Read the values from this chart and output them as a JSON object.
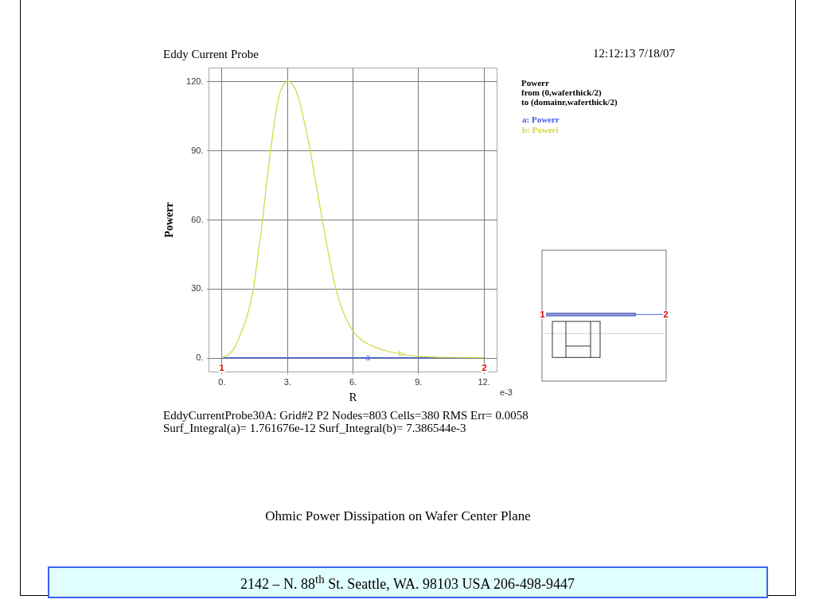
{
  "chart_data": {
    "type": "line",
    "title": "Eddy Current Probe",
    "xlabel": "R",
    "ylabel": "Powerr",
    "xlim": [
      -0.6,
      12.6
    ],
    "ylim": [
      -6,
      126
    ],
    "xticks": [
      {
        "value": 0,
        "label": "0."
      },
      {
        "value": 3,
        "label": "3."
      },
      {
        "value": 6,
        "label": "6."
      },
      {
        "value": 9,
        "label": "9."
      },
      {
        "value": 12,
        "label": "12."
      }
    ],
    "yticks": [
      {
        "value": 0,
        "label": "0."
      },
      {
        "value": 30,
        "label": "30."
      },
      {
        "value": 60,
        "label": "60."
      },
      {
        "value": 90,
        "label": "90."
      },
      {
        "value": 120,
        "label": "120."
      }
    ],
    "grid": true,
    "legend": "top right",
    "series": [
      {
        "name": "a: Powerr",
        "color": "#3f5fe6",
        "x": [
          0,
          3,
          6,
          9,
          12
        ],
        "values": [
          0,
          0,
          0,
          0,
          0
        ]
      },
      {
        "name": "b: Poweri",
        "color": "#d4d43c",
        "x": [
          0,
          0.3,
          0.6,
          0.9,
          1.1,
          1.3,
          1.45,
          1.67,
          1.88,
          2.05,
          2.24,
          2.4,
          2.55,
          2.75,
          3.05,
          3.3,
          3.52,
          3.8,
          4.06,
          4.3,
          4.61,
          4.9,
          5.21,
          5.45,
          5.7,
          6.06,
          6.49,
          7.09,
          7.6,
          8.18,
          8.6,
          9.03,
          10,
          11,
          12
        ],
        "values": [
          0,
          1.2,
          4.4,
          11,
          16,
          23,
          29.5,
          45,
          60,
          75,
          90,
          101,
          110,
          117,
          120,
          118,
          113,
          102,
          90,
          77,
          60,
          45,
          31,
          23,
          17,
          11,
          7.2,
          4.4,
          2.8,
          1.7,
          1,
          0.6,
          0.2,
          0.1,
          0
        ]
      }
    ],
    "annotations": [
      "12:12:13 7/18/07",
      "Powerr",
      "from (0,waferthick/2)",
      "to (domainr,waferthick/2)",
      "e-3",
      "1",
      "2",
      "1",
      "2",
      "EddyCurrentProbe30A: Grid#2 P2 Nodes=803 Cells=380 RMS Err= 0.0058",
      "Surf_Integral(a)= 1.761676e-12 Surf_Integral(b)= 7.386544e-3",
      "Ohmic Power Dissipation on Wafer Center Plane",
      "2142 – N. 88$^{th}$ St. Seattle, WA. 98103 USA 206-498-9447",
      {
        "text": "a",
        "x": 6.7,
        "y": 0
      },
      {
        "text": "b",
        "x": 8.2,
        "y": 1.7
      }
    ]
  }
}
